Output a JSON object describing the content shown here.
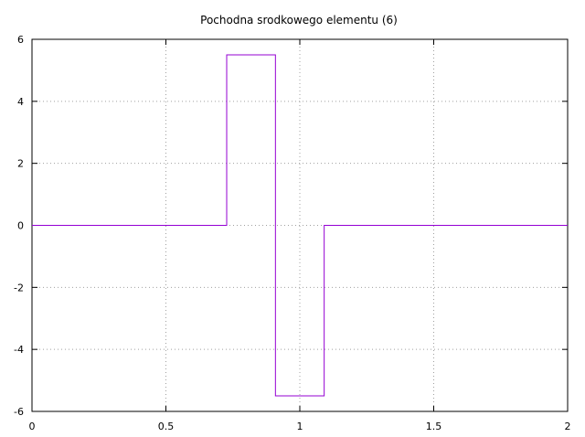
{
  "chart_data": {
    "type": "line",
    "title": "Pochodna srodkowego elementu (6)",
    "xlabel": "",
    "ylabel": "",
    "xlim": [
      0,
      2
    ],
    "ylim": [
      -6,
      6
    ],
    "xticks": [
      0,
      0.5,
      1,
      1.5,
      2
    ],
    "xtick_labels": [
      "0",
      "0.5",
      "1",
      "1.5",
      "2"
    ],
    "yticks": [
      -6,
      -4,
      -2,
      0,
      2,
      4,
      6
    ],
    "ytick_labels": [
      "-6",
      "-4",
      "-2",
      "0",
      "2",
      "4",
      "6"
    ],
    "grid": true,
    "legend": "none",
    "series": [
      {
        "color": "#9400d3",
        "step": true,
        "x": [
          0,
          0.727,
          0.727,
          0.909,
          0.909,
          1.091,
          1.091,
          2
        ],
        "y": [
          0,
          0,
          5.5,
          5.5,
          -5.5,
          -5.5,
          0,
          0
        ]
      }
    ]
  }
}
